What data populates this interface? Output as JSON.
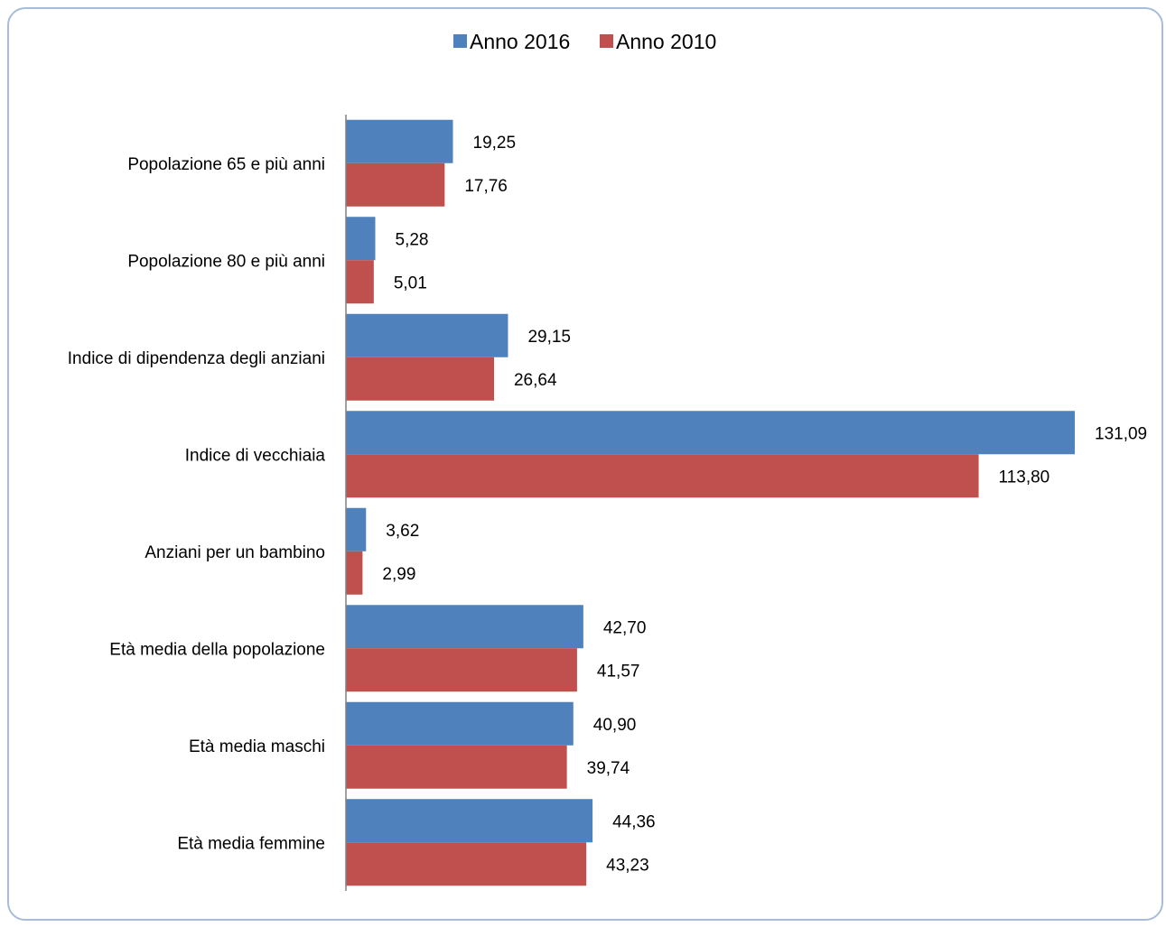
{
  "chart_data": {
    "type": "bar",
    "orientation": "horizontal",
    "categories": [
      "Popolazione 65 e più anni",
      "Popolazione 80 e più anni",
      "Indice di dipendenza degli anziani",
      "Indice di vecchiaia",
      "Anziani per un bambino",
      "Età media della popolazione",
      "Età media maschi",
      "Età media femmine"
    ],
    "series": [
      {
        "name": "Anno 2016",
        "color": "#4f81bd",
        "values": [
          19.25,
          5.28,
          29.15,
          131.09,
          3.62,
          42.7,
          40.9,
          44.36
        ],
        "labels": [
          "19,25",
          "5,28",
          "29,15",
          "131,09",
          "3,62",
          "42,70",
          "40,90",
          "44,36"
        ]
      },
      {
        "name": "Anno 2010",
        "color": "#c0504d",
        "values": [
          17.76,
          5.01,
          26.64,
          113.8,
          2.99,
          41.57,
          39.74,
          43.23
        ],
        "labels": [
          "17,76",
          "5,01",
          "26,64",
          "113,80",
          "2,99",
          "41,57",
          "39,74",
          "43,23"
        ]
      }
    ],
    "xlim": [
      0,
      131.09
    ],
    "legend": "top",
    "grid": false,
    "title": "",
    "xlabel": "",
    "ylabel": ""
  }
}
